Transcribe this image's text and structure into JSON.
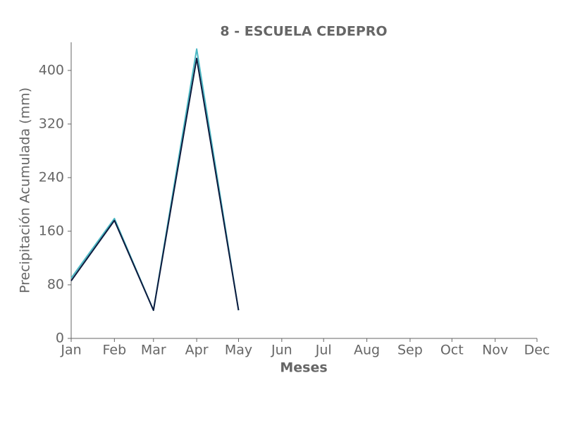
{
  "chart_data": {
    "type": "line",
    "title": "8 - ESCUELA CEDEPRO",
    "x_label": "Meses",
    "y_label": "Precipitación Acumulada (mm)",
    "categories": [
      "Jan",
      "Feb",
      "Mar",
      "Apr",
      "May",
      "Jun",
      "Jul",
      "Aug",
      "Sep",
      "Oct",
      "Nov",
      "Dec"
    ],
    "series": [
      {
        "color": "#0d1b3e",
        "values": [
          86,
          176,
          42,
          418,
          42,
          null,
          null,
          null,
          null,
          null,
          null,
          null
        ]
      },
      {
        "color": "#4cb8c4",
        "values": [
          90,
          179,
          42,
          432,
          42,
          null,
          null,
          null,
          null,
          null,
          null,
          null
        ]
      }
    ],
    "ylim": [
      0,
      442
    ],
    "yticks": [
      0,
      80,
      160,
      240,
      320,
      400
    ],
    "grid": false
  }
}
